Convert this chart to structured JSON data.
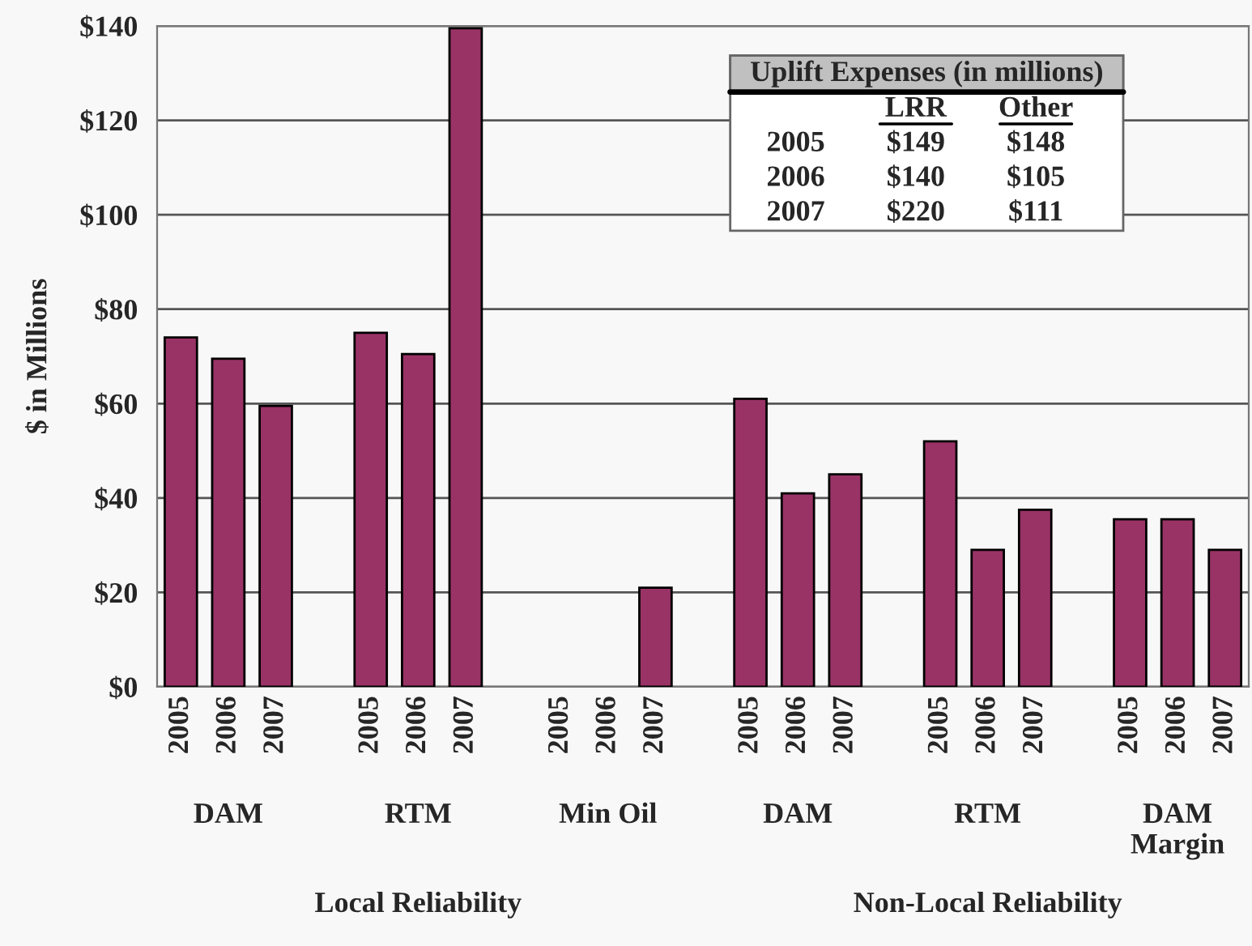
{
  "chart_data": {
    "type": "bar",
    "ylabel": "$ in Millions",
    "categories": [
      "2005",
      "2006",
      "2007",
      null,
      "2005",
      "2006",
      "2007",
      null,
      "2005",
      "2006",
      "2007",
      null,
      "2005",
      "2006",
      "2007",
      null,
      "2005",
      "2006",
      "2007",
      null,
      "2005",
      "2006",
      "2007"
    ],
    "values": [
      74,
      69.5,
      59.5,
      null,
      75,
      70.5,
      139.5,
      null,
      null,
      null,
      21,
      null,
      61,
      41,
      45,
      null,
      52,
      29,
      37.5,
      null,
      35.5,
      35.5,
      29
    ],
    "color": "#993366",
    "ylim": [
      0,
      140
    ],
    "yticks": [
      {
        "value": 0,
        "label": "$0"
      },
      {
        "value": 20,
        "label": "$20"
      },
      {
        "value": 40,
        "label": "$40"
      },
      {
        "value": 60,
        "label": "$60"
      },
      {
        "value": 80,
        "label": "$80"
      },
      {
        "value": 100,
        "label": "$100"
      },
      {
        "value": 120,
        "label": "$120"
      },
      {
        "value": 140,
        "label": "$140"
      }
    ],
    "grid": "y",
    "annotations": [
      "DAM",
      "RTM",
      "Min Oil",
      "DAM",
      "RTM",
      "DAM\nMargin",
      "Local Reliability",
      "Non-Local Reliability",
      "Uplift Expenses (in millions)",
      "LRR",
      "Other",
      "2005",
      "$149",
      "$148",
      "2006",
      "$140",
      "$105",
      "2007",
      "$220",
      "$111"
    ]
  }
}
